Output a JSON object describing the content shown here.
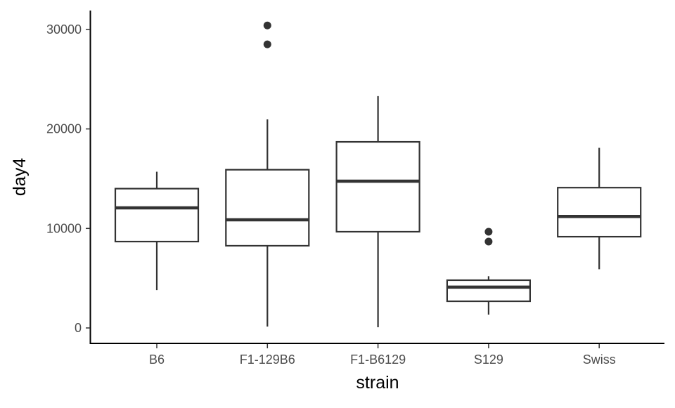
{
  "chart_data": {
    "type": "boxplot",
    "title": "",
    "xlabel": "strain",
    "ylabel": "day4",
    "ylim": [
      -1500,
      31500
    ],
    "yticks": [
      0,
      10000,
      20000,
      30000
    ],
    "ytick_labels": [
      "0",
      "10000",
      "20000",
      "30000"
    ],
    "grid": false,
    "categories": [
      "B6",
      "F1-129B6",
      "F1-B6129",
      "S129",
      "Swiss"
    ],
    "boxes": [
      {
        "category": "B6",
        "whisker_low": 3800,
        "q1": 8680,
        "median": 12070,
        "q3": 14000,
        "whisker_high": 15700,
        "outliers": []
      },
      {
        "category": "F1-129B6",
        "whisker_low": 140,
        "q1": 8260,
        "median": 10870,
        "q3": 15900,
        "whisker_high": 20960,
        "outliers": [
          30400,
          28500
        ]
      },
      {
        "category": "F1-B6129",
        "whisker_low": 70,
        "q1": 9670,
        "median": 14750,
        "q3": 18700,
        "whisker_high": 23300,
        "outliers": []
      },
      {
        "category": "S129",
        "whisker_low": 1340,
        "q1": 2680,
        "median": 4100,
        "q3": 4800,
        "whisker_high": 5200,
        "outliers": [
          9670,
          8680
        ]
      },
      {
        "category": "Swiss",
        "whisker_low": 5900,
        "q1": 9170,
        "median": 11200,
        "q3": 14100,
        "whisker_high": 18100,
        "outliers": []
      }
    ],
    "colors": {
      "line": "#333333",
      "fill": "#ffffff",
      "axis": "#000000",
      "tick_text": "#4d4d4d"
    }
  }
}
